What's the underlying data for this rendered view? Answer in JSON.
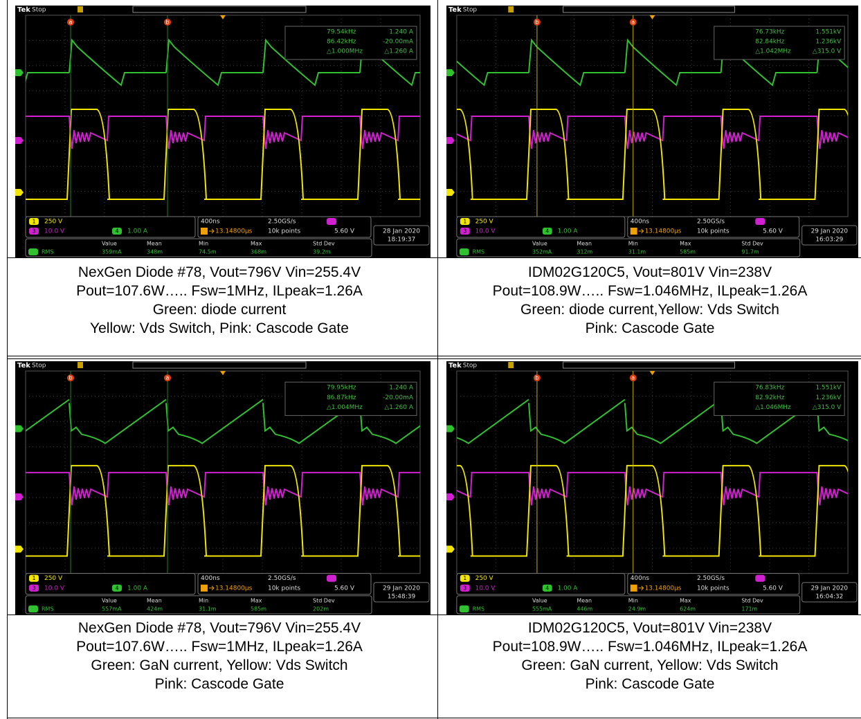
{
  "panels": [
    {
      "scope": {
        "brand": "Tek",
        "status": "Stop",
        "cursor_labels": [
          "a",
          "b"
        ],
        "readout": [
          [
            "79.54kHz",
            "1.240 A"
          ],
          [
            "86.42kHz",
            "-20.00mA"
          ],
          [
            "△1.000MHz",
            "△1.260 A"
          ]
        ],
        "channels": [
          {
            "id": "1",
            "scale": "250 V"
          },
          {
            "id": "3",
            "scale": "10.0 V"
          },
          {
            "id": "4",
            "scale": "1.00 A"
          }
        ],
        "timebase": "400ns",
        "sample_rate": "2.50GS/s",
        "trigger_pos": "13.14800µs",
        "record": "10k points",
        "trigger_level": "5.60 V",
        "date": "28 Jan 2020",
        "time": "18:19:37",
        "meas_headers": [
          "Value",
          "Mean",
          "Min",
          "Max",
          "Std Dev"
        ],
        "meas_label": "RMS",
        "meas_values": [
          "359mA",
          "348m",
          "74.5m",
          "368m",
          "39.2m"
        ]
      },
      "caption": [
        "NexGen Diode #78, Vout=796V Vin=255.4V",
        "Pout=107.6W….. Fsw=1MHz, ILpeak=1.26A",
        "Green: diode current",
        "Yellow: Vds Switch, Pink: Cascode Gate"
      ]
    },
    {
      "scope": {
        "brand": "Tek",
        "status": "Stop",
        "cursor_labels": [
          "b",
          "a"
        ],
        "readout": [
          [
            "76.73kHz",
            "1.551kV"
          ],
          [
            "82.84kHz",
            "1.236kV"
          ],
          [
            "△1.042MHz",
            "△315.0 V"
          ]
        ],
        "channels": [
          {
            "id": "1",
            "scale": "250 V"
          },
          {
            "id": "3",
            "scale": "10.0 V"
          },
          {
            "id": "4",
            "scale": "1.00 A"
          }
        ],
        "timebase": "400ns",
        "sample_rate": "2.50GS/s",
        "trigger_pos": "13.14800µs",
        "record": "10k points",
        "trigger_level": "5.60 V",
        "date": "29 Jan 2020",
        "time": "16:03:29",
        "meas_headers": [
          "Value",
          "Mean",
          "Min",
          "Max",
          "Std Dev"
        ],
        "meas_label": "RMS",
        "meas_values": [
          "352mA",
          "312m",
          "31.1m",
          "585m",
          "91.7m"
        ]
      },
      "caption": [
        "IDM02G120C5, Vout=801V Vin=238V",
        "Pout=108.9W….. Fsw=1.046MHz, ILpeak=1.26A",
        "Green: diode current,Yellow: Vds Switch",
        "Pink: Cascode Gate"
      ]
    },
    {
      "scope": {
        "brand": "Tek",
        "status": "Stop",
        "cursor_labels": [
          "b",
          "a"
        ],
        "readout": [
          [
            "79.95kHz",
            "1.240 A"
          ],
          [
            "86.87kHz",
            "-20.00mA"
          ],
          [
            "△1.004MHz",
            "△1.260 A"
          ]
        ],
        "channels": [
          {
            "id": "1",
            "scale": "250 V"
          },
          {
            "id": "3",
            "scale": "10.0 V"
          },
          {
            "id": "4",
            "scale": "1.00 A"
          }
        ],
        "timebase": "400ns",
        "sample_rate": "2.50GS/s",
        "trigger_pos": "13.14800µs",
        "record": "10k points",
        "trigger_level": "5.60 V",
        "date": "29 Jan 2020",
        "time": "15:48:39",
        "meas_headers": [
          "Value",
          "Mean",
          "Min",
          "Max",
          "Std Dev"
        ],
        "meas_label": "RMS",
        "meas_values": [
          "557mA",
          "424m",
          "31.1m",
          "585m",
          "202m"
        ]
      },
      "caption": [
        "NexGen Diode #78, Vout=796V Vin=255.4V",
        "Pout=107.6W….. Fsw=1MHz, ILpeak=1.26A",
        "Green: GaN current, Yellow: Vds Switch",
        "Pink: Cascode Gate"
      ]
    },
    {
      "scope": {
        "brand": "Tek",
        "status": "Stop",
        "cursor_labels": [
          "b",
          "a"
        ],
        "readout": [
          [
            "76.83kHz",
            "1.551kV"
          ],
          [
            "82.92kHz",
            "1.236kV"
          ],
          [
            "△1.046MHz",
            "△315.0 V"
          ]
        ],
        "channels": [
          {
            "id": "1",
            "scale": "250 V"
          },
          {
            "id": "3",
            "scale": "10.0 V"
          },
          {
            "id": "4",
            "scale": "1.00 A"
          }
        ],
        "timebase": "400ns",
        "sample_rate": "2.50GS/s",
        "trigger_pos": "13.14800µs",
        "record": "10k points",
        "trigger_level": "5.60 V",
        "date": "29 Jan 2020",
        "time": "16:04:32",
        "meas_headers": [
          "Value",
          "Mean",
          "Min",
          "Max",
          "Std Dev"
        ],
        "meas_label": "RMS",
        "meas_values": [
          "555mA",
          "446m",
          "24.9m",
          "624m",
          "171m"
        ]
      },
      "caption": [
        "IDM02G120C5, Vout=801V Vin=238V",
        "Pout=108.9W….. Fsw=1.046MHz, ILpeak=1.26A",
        "Green: GaN current, Yellow: Vds Switch",
        "Pink: Cascode Gate"
      ]
    }
  ]
}
